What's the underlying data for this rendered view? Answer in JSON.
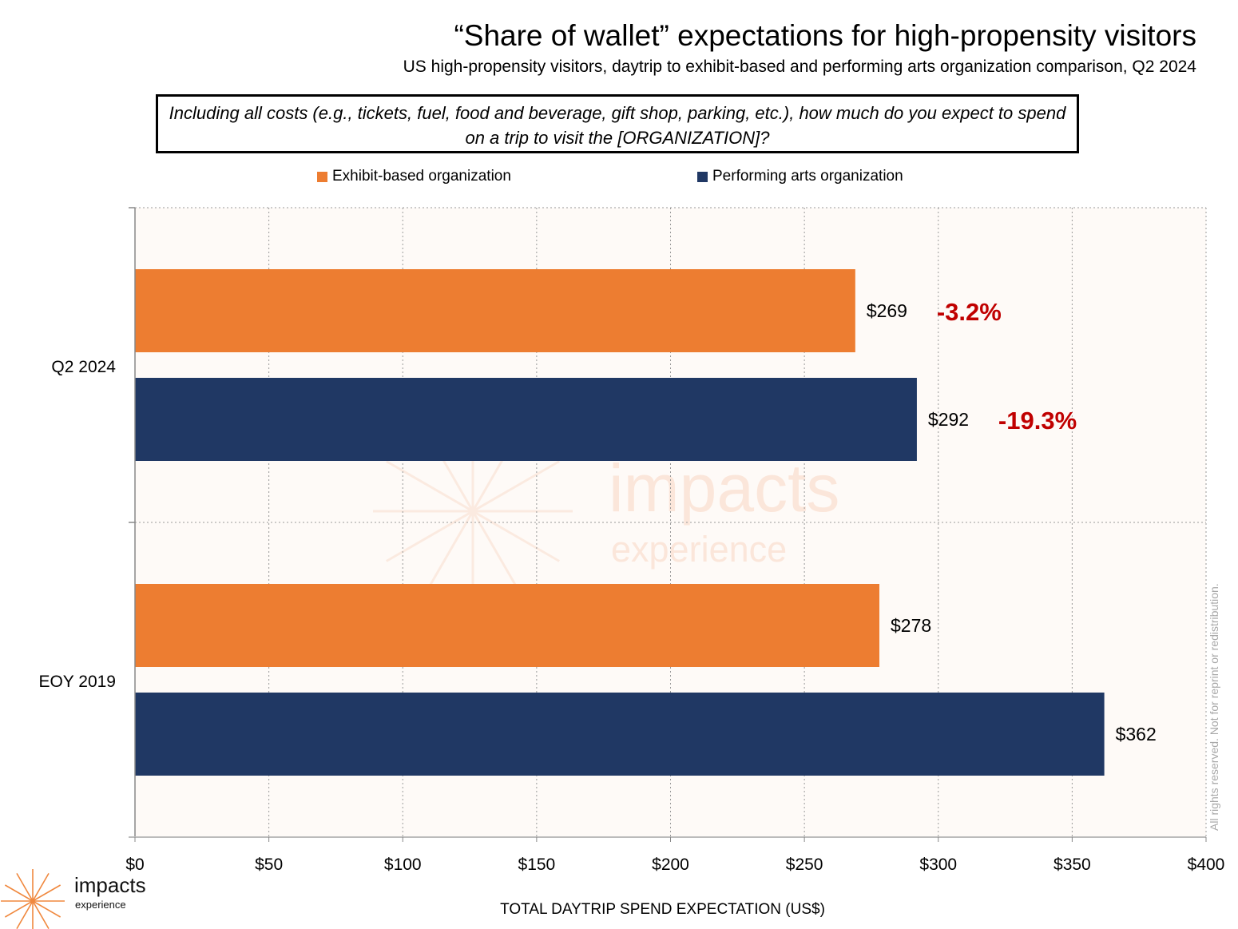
{
  "chart_data": {
    "type": "bar",
    "orientation": "horizontal",
    "title": "“Share of wallet” expectations for high-propensity visitors",
    "subtitle": "US high-propensity visitors, daytrip to exhibit-based and performing arts organization comparison, Q2 2024",
    "question": "Including all costs (e.g., tickets, fuel, food and beverage, gift shop, parking, etc.), how much do you expect to spend on a trip to visit the [ORGANIZATION]?",
    "categories": [
      "Q2 2024",
      "EOY 2019"
    ],
    "series": [
      {
        "name": "Exhibit-based organization",
        "color": "#ED7D31",
        "values": [
          269,
          278
        ],
        "labels": [
          "$269",
          "$278"
        ]
      },
      {
        "name": "Performing arts organization",
        "color": "#203864",
        "values": [
          292,
          362
        ],
        "labels": [
          "$292",
          "$362"
        ]
      }
    ],
    "annotations": [
      {
        "category": "Q2 2024",
        "series": "Exhibit-based organization",
        "text": "-3.2%",
        "color": "#C00000"
      },
      {
        "category": "Q2 2024",
        "series": "Performing arts organization",
        "text": "-19.3%",
        "color": "#C00000"
      }
    ],
    "xlabel": "TOTAL DAYTRIP SPEND EXPECTATION (US$)",
    "ylabel": "",
    "xlim": [
      0,
      400
    ],
    "xticks": [
      0,
      50,
      100,
      150,
      200,
      250,
      300,
      350,
      400
    ],
    "xtick_labels": [
      "$0",
      "$50",
      "$100",
      "$150",
      "$200",
      "$250",
      "$300",
      "$350",
      "$400"
    ],
    "grid": true,
    "legend_position": "top-center",
    "plot_background": "#FEFAF7"
  },
  "footer": {
    "rights": "All rights reserved. Not for reprint or redistribution.",
    "logo_name": "impacts",
    "logo_sub": "experience",
    "watermark_name": "impacts",
    "watermark_sub": "experience"
  }
}
